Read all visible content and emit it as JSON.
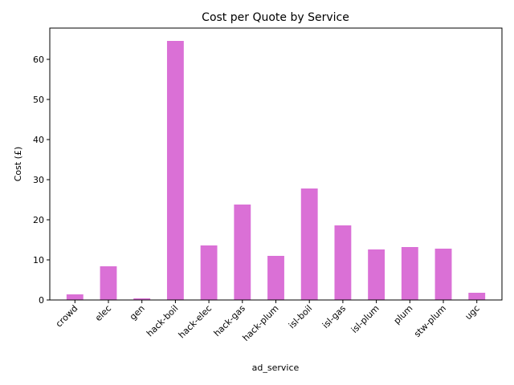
{
  "chart_data": {
    "type": "bar",
    "title": "Cost per Quote by Service",
    "xlabel": "ad_service",
    "ylabel": "Cost (£)",
    "categories": [
      "crowd",
      "elec",
      "gen",
      "hack-boil",
      "hack-elec",
      "hack-gas",
      "hack-plum",
      "isl-boil",
      "isl-gas",
      "isl-plum",
      "plum",
      "stw-plum",
      "ugc"
    ],
    "values": [
      1.4,
      8.4,
      0.4,
      64.6,
      13.6,
      23.8,
      11.0,
      27.8,
      18.6,
      12.6,
      13.2,
      12.8,
      1.8
    ],
    "ylim": [
      0,
      67.8
    ],
    "yticks": [
      0,
      10,
      20,
      30,
      40,
      50,
      60
    ],
    "grid": false,
    "bar_color": "#da70d6"
  }
}
